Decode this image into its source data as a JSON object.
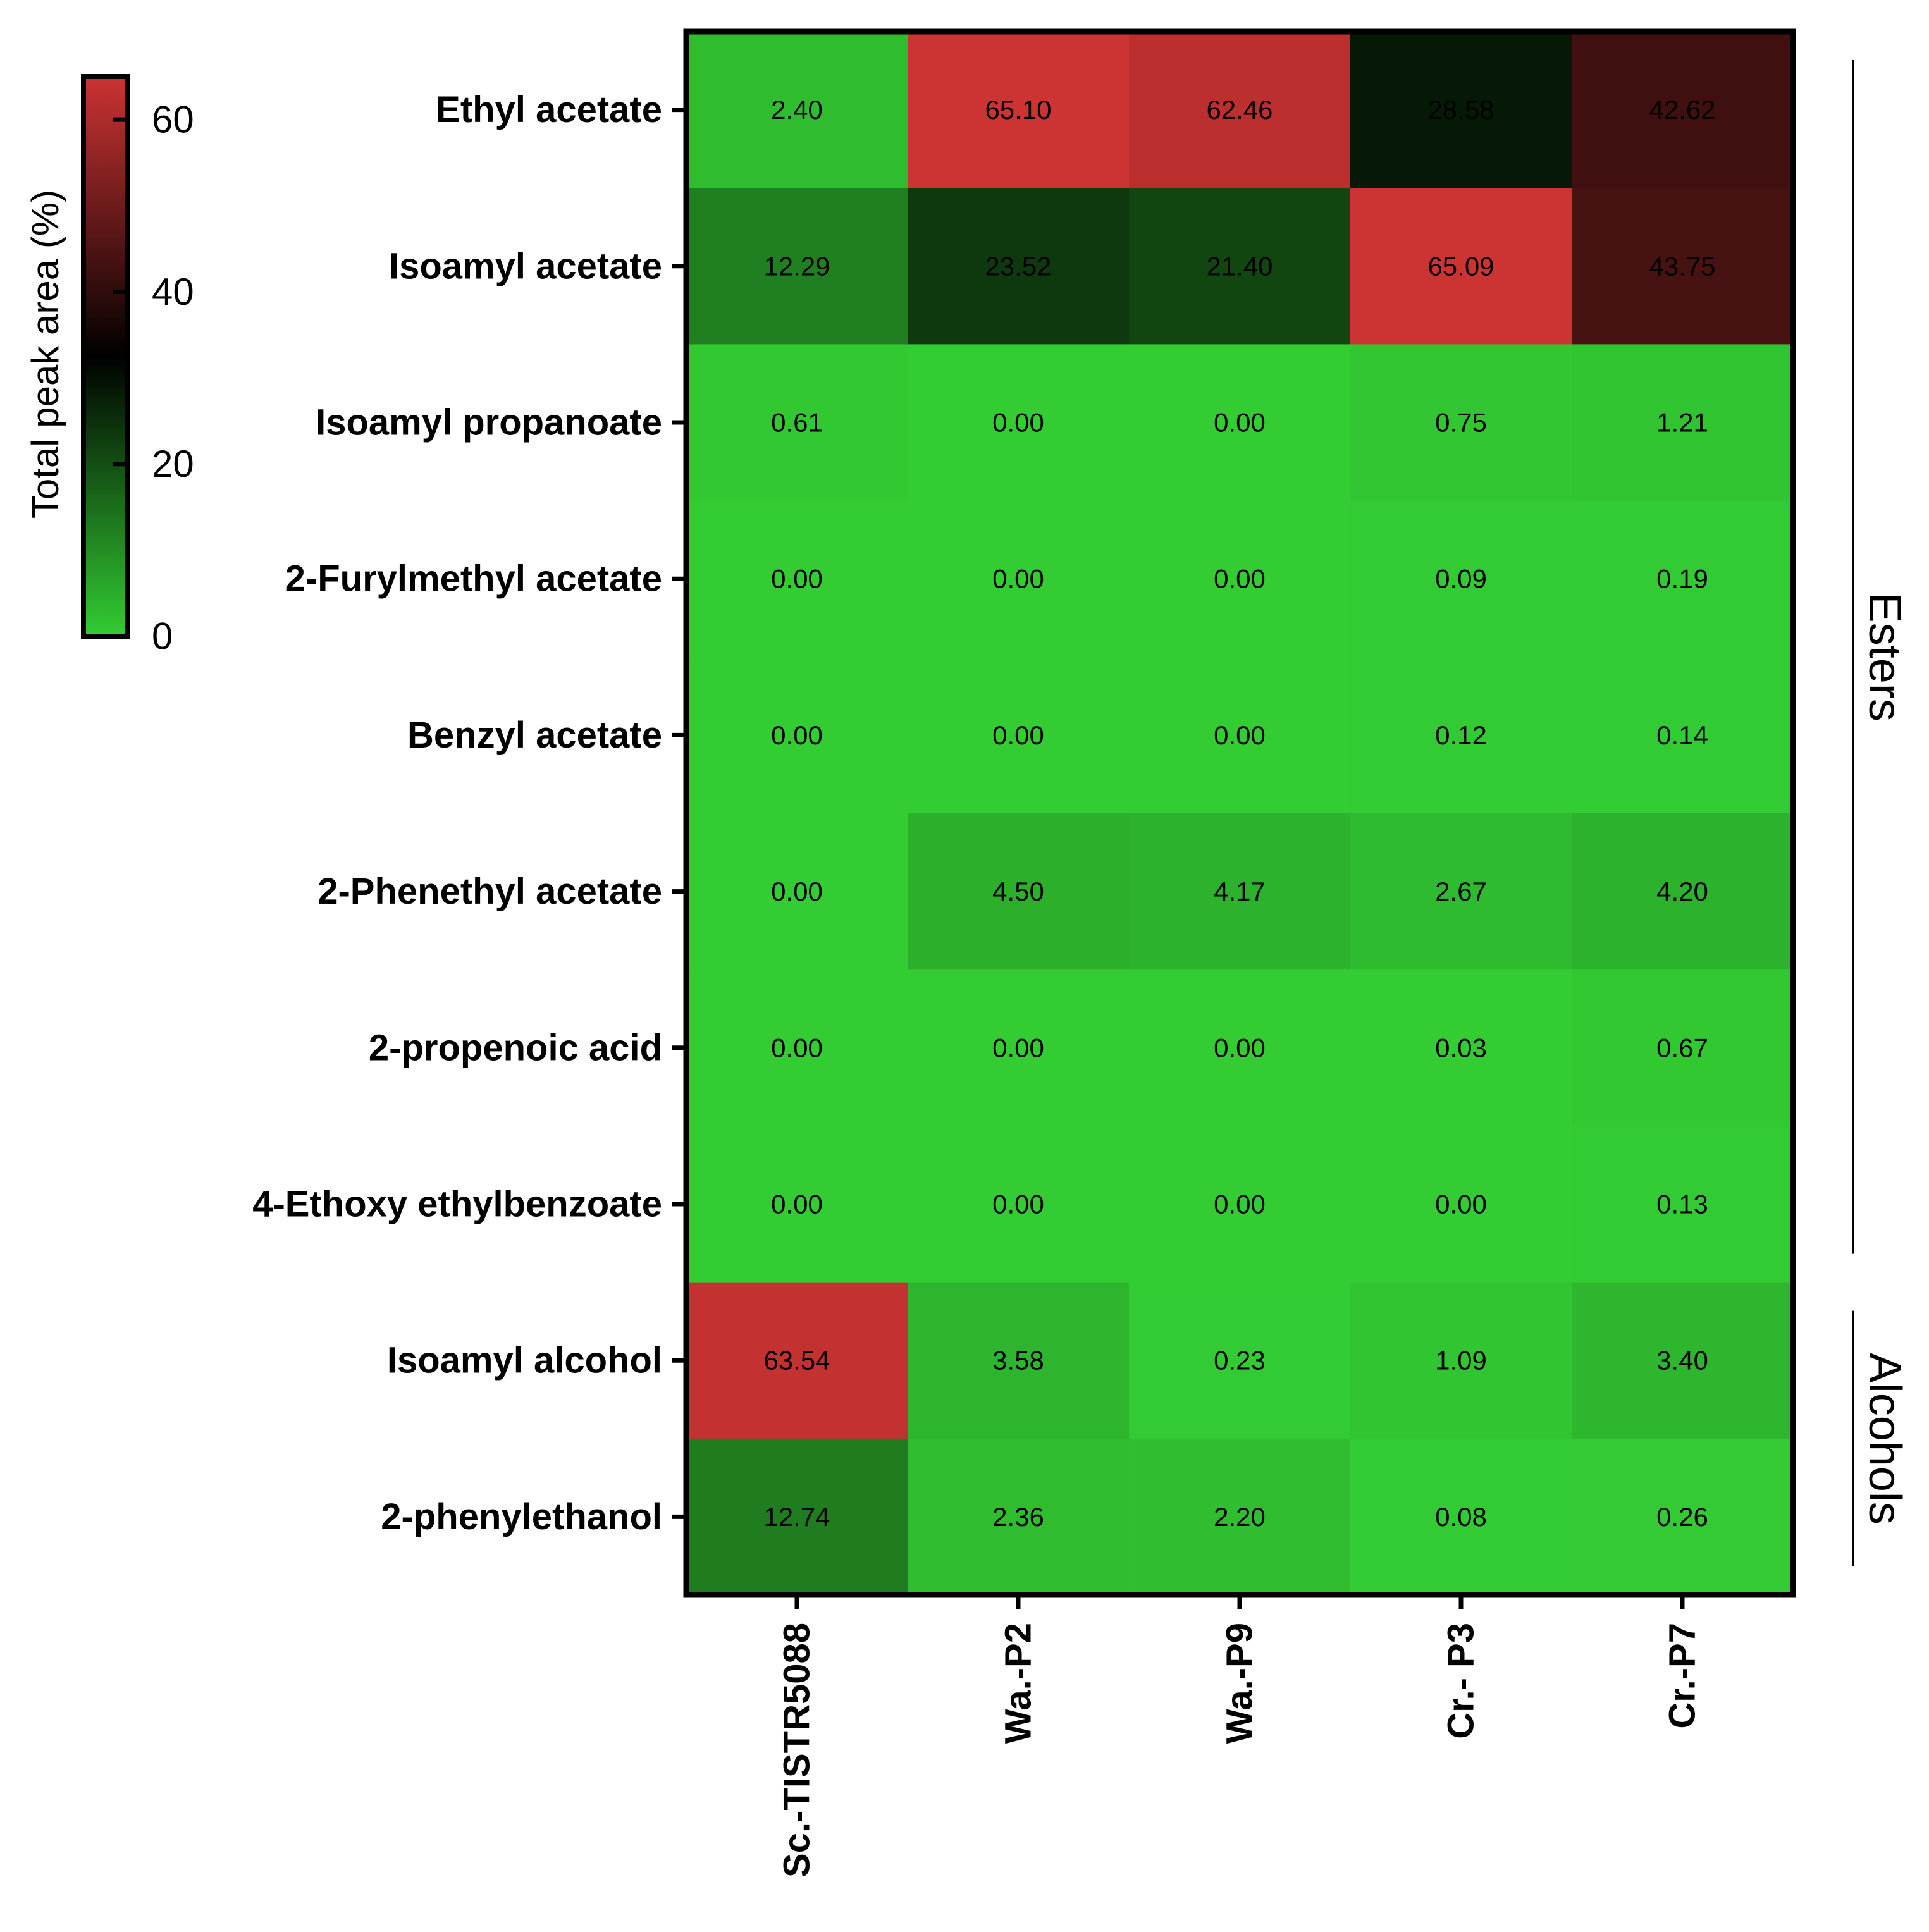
{
  "chart_data": {
    "type": "heatmap",
    "rows": [
      "Ethyl acetate",
      "Isoamyl acetate",
      "Isoamyl propanoate",
      "2-Furylmethyl acetate",
      "Benzyl acetate",
      "2-Phenethyl acetate",
      "2-propenoic acid",
      "4-Ethoxy ethylbenzoate",
      "Isoamyl alcohol",
      "2-phenylethanol"
    ],
    "columns": [
      "Sc.-TISTR5088",
      "Wa.-P2",
      "Wa.-P9",
      "Cr.- P3",
      "Cr.-P7"
    ],
    "values": [
      [
        2.4,
        65.1,
        62.46,
        28.58,
        42.62
      ],
      [
        12.29,
        23.52,
        21.4,
        65.09,
        43.75
      ],
      [
        0.61,
        0.0,
        0.0,
        0.75,
        1.21
      ],
      [
        0.0,
        0.0,
        0.0,
        0.09,
        0.19
      ],
      [
        0.0,
        0.0,
        0.0,
        0.12,
        0.14
      ],
      [
        0.0,
        4.5,
        4.17,
        2.67,
        4.2
      ],
      [
        0.0,
        0.0,
        0.0,
        0.03,
        0.67
      ],
      [
        0.0,
        0.0,
        0.0,
        0.0,
        0.13
      ],
      [
        63.54,
        3.58,
        0.23,
        1.09,
        3.4
      ],
      [
        12.74,
        2.36,
        2.2,
        0.08,
        0.26
      ]
    ],
    "cell_labels": [
      [
        "2.40",
        "65.10",
        "62.46",
        "28.58",
        "42.62"
      ],
      [
        "12.29",
        "23.52",
        "21.40",
        "65.09",
        "43.75"
      ],
      [
        "0.61",
        "0.00",
        "0.00",
        "0.75",
        "1.21"
      ],
      [
        "0.00",
        "0.00",
        "0.00",
        "0.09",
        "0.19"
      ],
      [
        "0.00",
        "0.00",
        "0.00",
        "0.12",
        "0.14"
      ],
      [
        "0.00",
        "4.50",
        "4.17",
        "2.67",
        "4.20"
      ],
      [
        "0.00",
        "0.00",
        "0.00",
        "0.03",
        "0.67"
      ],
      [
        "0.00",
        "0.00",
        "0.00",
        "0.00",
        "0.13"
      ],
      [
        "63.54",
        "3.58",
        "0.23",
        "1.09",
        "3.40"
      ],
      [
        "12.74",
        "2.36",
        "2.20",
        "0.08",
        "0.26"
      ]
    ],
    "colorbar": {
      "title": "Total peak area (%)",
      "range": [
        0,
        65
      ],
      "ticks": [
        0,
        20,
        40,
        60
      ],
      "tick_labels": [
        "0",
        "20",
        "40",
        "60"
      ],
      "low_color": "#33cc33",
      "mid_color": "#000000",
      "high_color": "#cc3333",
      "mid_value": 32.5
    },
    "groups": [
      {
        "label": "Esters",
        "rows": [
          0,
          7
        ]
      },
      {
        "label": "Alcohols",
        "rows": [
          8,
          9
        ]
      }
    ]
  }
}
